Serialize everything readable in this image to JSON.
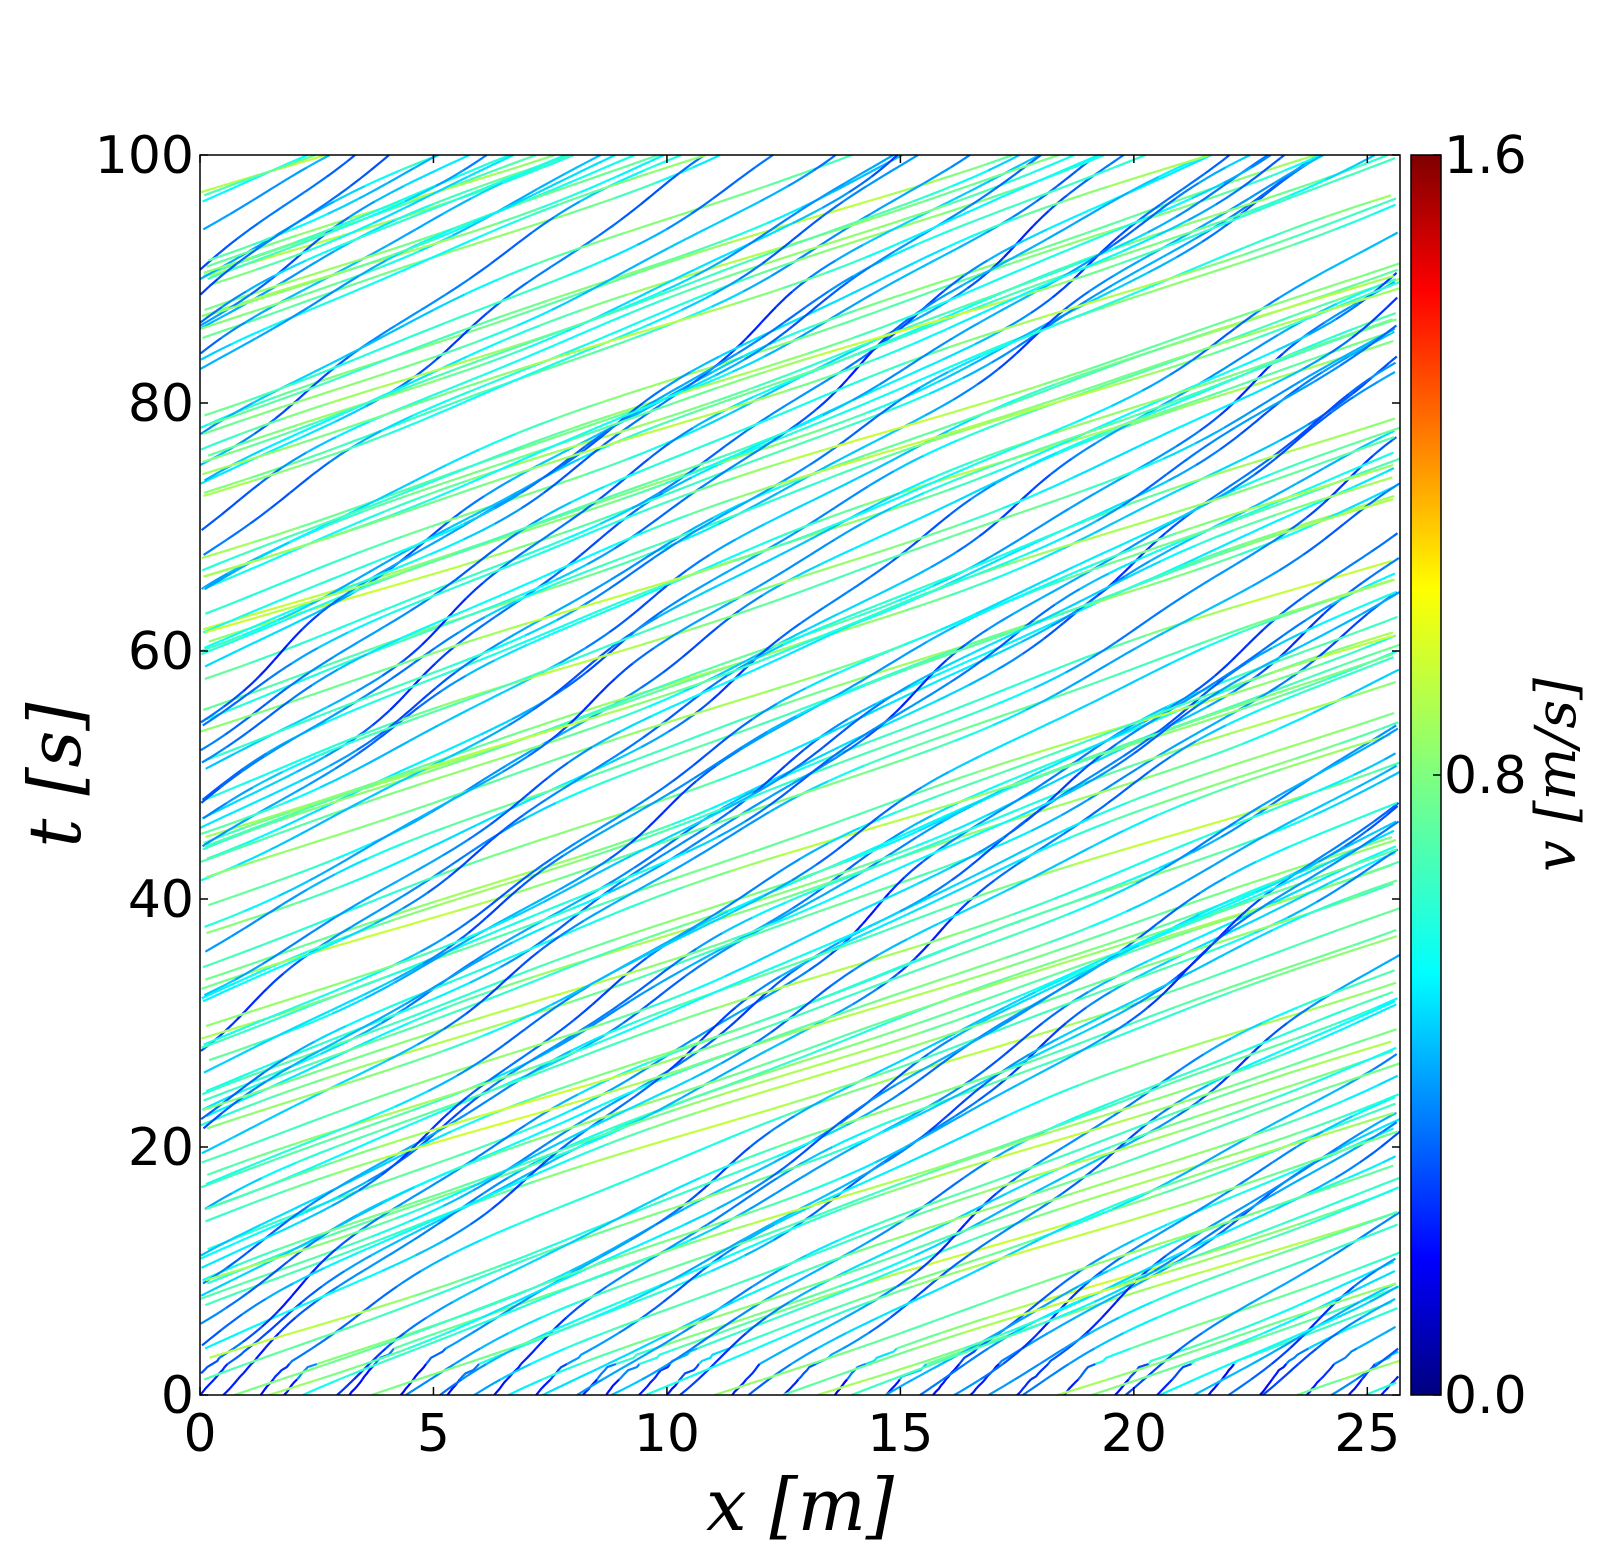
{
  "chart_data": {
    "type": "line",
    "title": "",
    "xlabel": "x [m]",
    "ylabel": "t [s]",
    "xlim": [
      0,
      25.7
    ],
    "ylim": [
      0,
      100
    ],
    "xticks": [
      "0",
      "5",
      "10",
      "15",
      "20",
      "25"
    ],
    "yticks": [
      "0",
      "20",
      "40",
      "60",
      "80",
      "100"
    ],
    "grid": false,
    "legend": "none",
    "colorbar": {
      "label": "v [m/s]",
      "range": [
        0.0,
        1.6
      ],
      "ticks": [
        "0.0",
        "0.8",
        "1.6"
      ],
      "colormap": "jet"
    },
    "trajectories": {
      "description_of_data": "pedestrian trajectories on a periodic 25.7 m ring, colored by speed",
      "count": 62,
      "start_x": [
        0.0,
        0.5,
        1.3,
        1.8,
        3.2,
        4.3,
        5.3,
        6.3,
        7.2,
        8.2,
        8.7,
        9.4,
        10.0,
        11.4,
        12.5,
        13.6,
        14.7,
        15.7,
        16.5,
        17.5,
        18.5,
        19.6,
        20.5,
        21.6,
        22.7,
        23.7,
        24.6,
        25.3
      ],
      "mean_speed": 0.58,
      "speed_min_shown": 0.15,
      "speed_max_shown": 0.95
    }
  },
  "colors": {
    "axes": "#000000",
    "background": "#ffffff",
    "jet_low": "#00007f",
    "jet_mid": "#7fff7f",
    "jet_high": "#7f0000"
  }
}
